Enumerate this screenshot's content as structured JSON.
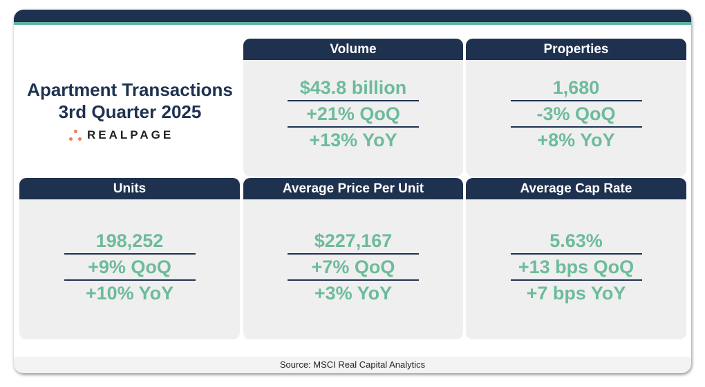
{
  "title_line1": "Apartment Transactions",
  "title_line2": "3rd Quarter 2025",
  "logo_text": "REALPAGE",
  "colors": {
    "navy": "#1e3250",
    "green": "#6dbb9b",
    "teal": "#62b3a0",
    "card": "#efefef",
    "logo_orange": "#ef7d5a"
  },
  "cards": [
    {
      "label": "Volume",
      "value": "$43.8 billion",
      "qoq": "+21% QoQ",
      "yoy": "+13% YoY"
    },
    {
      "label": "Properties",
      "value": "1,680",
      "qoq": "-3% QoQ",
      "yoy": "+8% YoY"
    },
    {
      "label": "Units",
      "value": "198,252",
      "qoq": "+9% QoQ",
      "yoy": "+10% YoY"
    },
    {
      "label": "Average Price Per Unit",
      "value": "$227,167",
      "qoq": "+7% QoQ",
      "yoy": "+3% YoY"
    },
    {
      "label": "Average Cap Rate",
      "value": "5.63%",
      "qoq": "+13 bps QoQ",
      "yoy": "+7 bps YoY"
    }
  ],
  "source": "Source: MSCI Real Capital Analytics"
}
